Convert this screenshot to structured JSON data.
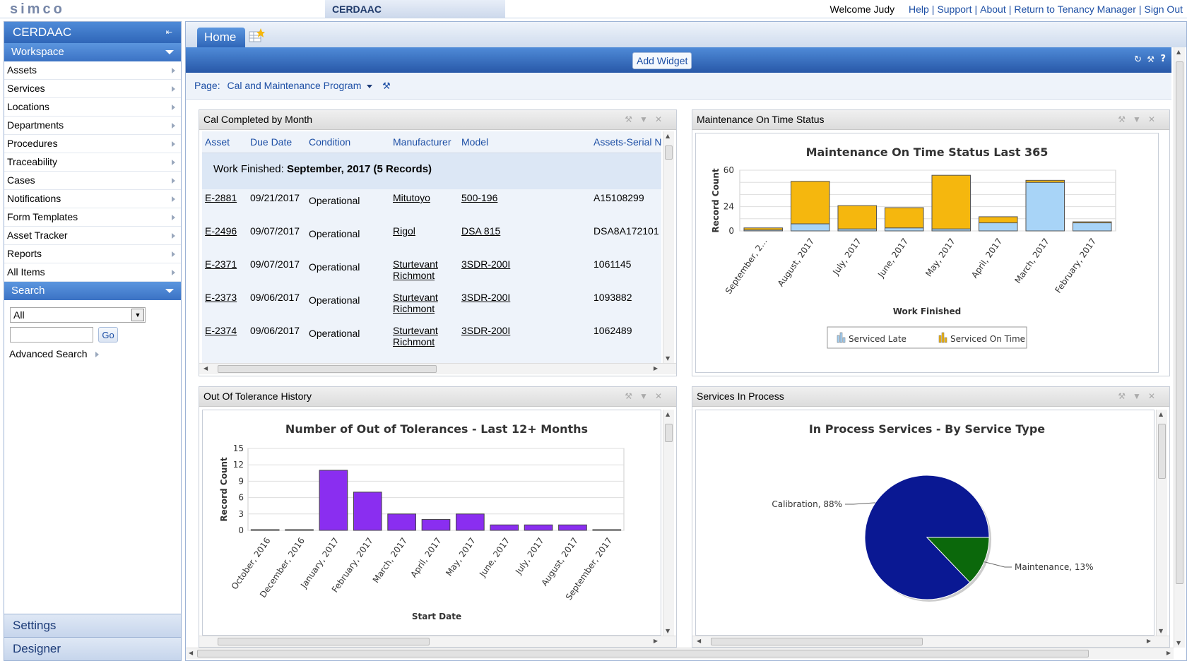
{
  "header": {
    "logo": "simco",
    "app_name": "CERDAAC",
    "welcome": "Welcome Judy",
    "links": [
      "Help",
      "Support",
      "About",
      "Return to Tenancy Manager",
      "Sign Out"
    ]
  },
  "sidebar": {
    "title": "CERDAAC",
    "workspace_label": "Workspace",
    "items": [
      {
        "label": "Assets"
      },
      {
        "label": "Services"
      },
      {
        "label": "Locations"
      },
      {
        "label": "Departments"
      },
      {
        "label": "Procedures"
      },
      {
        "label": "Traceability"
      },
      {
        "label": "Cases"
      },
      {
        "label": "Notifications"
      },
      {
        "label": "Form Templates"
      },
      {
        "label": "Asset Tracker"
      },
      {
        "label": "Reports"
      },
      {
        "label": "All Items"
      }
    ],
    "search_label": "Search",
    "search_select_value": "All",
    "search_input_value": "",
    "go_label": "Go",
    "advanced_search": "Advanced Search",
    "settings_label": "Settings",
    "designer_label": "Designer"
  },
  "main": {
    "home_tab": "Home",
    "add_widget": "Add Widget",
    "page_label": "Page:",
    "page_value": "Cal and Maintenance Program"
  },
  "widgets": {
    "cal_completed": {
      "title": "Cal Completed by Month",
      "columns": [
        "Asset",
        "Due Date",
        "Condition",
        "Manufacturer",
        "Model",
        "Assets-Serial N"
      ],
      "group_prefix": "Work Finished:",
      "group_value": "September, 2017 (5 Records)",
      "rows": [
        {
          "asset": "E-2881",
          "due": "09/21/2017",
          "condition": "Operational",
          "manufacturer": "Mitutoyo",
          "model": "500-196",
          "serial": "A15108299"
        },
        {
          "asset": "E-2496",
          "due": "09/07/2017",
          "condition": "Operational",
          "manufacturer": "Rigol",
          "model": "DSA 815",
          "serial": "DSA8A172101"
        },
        {
          "asset": "E-2371",
          "due": "09/07/2017",
          "condition": "Operational",
          "manufacturer": "Sturtevant Richmont",
          "model": "3SDR-200I",
          "serial": "1061145"
        },
        {
          "asset": "E-2373",
          "due": "09/06/2017",
          "condition": "Operational",
          "manufacturer": "Sturtevant Richmont",
          "model": "3SDR-200I",
          "serial": "1093882"
        },
        {
          "asset": "E-2374",
          "due": "09/06/2017",
          "condition": "Operational",
          "manufacturer": "Sturtevant Richmont",
          "model": "3SDR-200I",
          "serial": "1062489"
        }
      ]
    },
    "maintenance": {
      "title": "Maintenance On Time Status"
    },
    "oot": {
      "title": "Out Of Tolerance History"
    },
    "services": {
      "title": "Services In Process"
    }
  },
  "chart_data": [
    {
      "type": "bar",
      "title": "Maintenance On Time Status Last 365",
      "xlabel": "Work Finished",
      "ylabel": "Record Count",
      "categories": [
        "September, 2...",
        "August, 2017",
        "July, 2017",
        "June, 2017",
        "May, 2017",
        "April, 2017",
        "March, 2017",
        "February, 2017"
      ],
      "yticks": [
        "60",
        "24",
        "0"
      ],
      "ylim": [
        0,
        60
      ],
      "stacked": true,
      "series": [
        {
          "name": "Serviced Late",
          "color": "#a8d4f7",
          "values": [
            1,
            7,
            2,
            3,
            2,
            8,
            48,
            8
          ]
        },
        {
          "name": "Serviced On Time",
          "color": "#f5b70e",
          "values": [
            2,
            42,
            23,
            20,
            53,
            6,
            2,
            1
          ]
        }
      ],
      "legend": "bottom"
    },
    {
      "type": "bar",
      "title": "Number of Out of Tolerances - Last 12+ Months",
      "xlabel": "Start Date",
      "ylabel": "Record Count",
      "categories": [
        "October, 2016",
        "December, 2016",
        "January, 2017",
        "February, 2017",
        "March, 2017",
        "April, 2017",
        "May, 2017",
        "June, 2017",
        "July, 2017",
        "August, 2017",
        "September, 2017"
      ],
      "yticks": [
        "15",
        "12",
        "9",
        "6",
        "3",
        "0"
      ],
      "ylim": [
        0,
        15
      ],
      "series": [
        {
          "color": "#8a2ef0",
          "values": [
            0,
            0,
            11,
            7,
            3,
            2,
            3,
            1,
            1,
            1,
            0
          ]
        }
      ]
    },
    {
      "type": "pie",
      "title": "In Process Services - By Service Type",
      "labels": [
        "Calibration, 88%",
        "Maintenance, 13%"
      ],
      "values": [
        88,
        13
      ],
      "colors": [
        "#0a1893",
        "#0b680b"
      ]
    }
  ]
}
